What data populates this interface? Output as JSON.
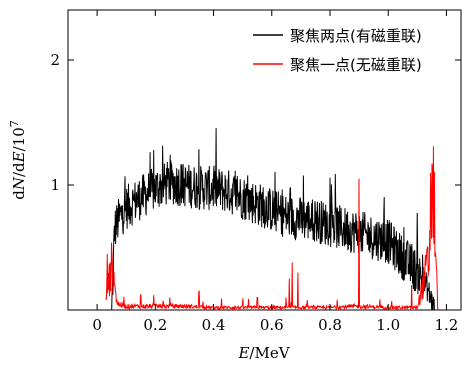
{
  "chart_data": {
    "type": "line",
    "title": "",
    "xlabel": "E/MeV",
    "xlabel_var": "E",
    "xlabel_unit": "/MeV",
    "ylabel": "dN/dE/10^7",
    "ylabel_parts": {
      "d1": "d",
      "N": "N",
      "slash1": "/d",
      "E": "E",
      "slash2": "/10",
      "exp": "7"
    },
    "xlim": [
      -0.1,
      1.25
    ],
    "ylim": [
      0,
      2.4
    ],
    "xticks": [
      0,
      0.2,
      0.4,
      0.6,
      0.8,
      1.0,
      1.2
    ],
    "xtick_labels": [
      "0",
      "0.2",
      "0.4",
      "0.6",
      "0.8",
      "1.0",
      "1.2"
    ],
    "yticks": [
      1,
      2
    ],
    "ytick_labels": [
      "1",
      "2"
    ],
    "grid": false,
    "legend_position": "top-right",
    "series": [
      {
        "name": "聚焦两点(有磁重联)",
        "color": "#000000",
        "x": [
          0.05,
          0.06,
          0.08,
          0.1,
          0.15,
          0.2,
          0.25,
          0.3,
          0.35,
          0.4,
          0.45,
          0.5,
          0.55,
          0.6,
          0.65,
          0.7,
          0.75,
          0.8,
          0.85,
          0.9,
          0.95,
          1.0,
          1.05,
          1.1,
          1.13,
          1.16
        ],
        "y": [
          0.0,
          0.65,
          0.75,
          0.82,
          0.9,
          0.97,
          1.02,
          1.0,
          0.98,
          0.97,
          0.95,
          0.9,
          0.85,
          0.8,
          0.75,
          0.73,
          0.72,
          0.68,
          0.65,
          0.62,
          0.58,
          0.55,
          0.42,
          0.3,
          0.2,
          0.0
        ],
        "noise": 0.18
      },
      {
        "name": "聚焦一点(无磁重联)",
        "color": "#ff0000",
        "x": [
          0.03,
          0.05,
          0.07,
          0.1,
          0.2,
          0.3,
          0.4,
          0.5,
          0.6,
          0.7,
          0.8,
          0.9,
          1.0,
          1.1,
          1.14,
          1.15,
          1.16,
          1.17
        ],
        "y": [
          0.1,
          0.35,
          0.05,
          0.03,
          0.03,
          0.03,
          0.02,
          0.02,
          0.02,
          0.02,
          0.02,
          0.03,
          0.02,
          0.02,
          0.4,
          1.1,
          0.7,
          0.0
        ],
        "spikes": [
          [
            0.035,
            0.45
          ],
          [
            0.045,
            0.38
          ],
          [
            0.06,
            0.2
          ],
          [
            0.15,
            0.12
          ],
          [
            0.25,
            0.1
          ],
          [
            0.35,
            0.15
          ],
          [
            0.55,
            0.1
          ],
          [
            0.66,
            0.25
          ],
          [
            0.67,
            0.38
          ],
          [
            0.69,
            0.3
          ],
          [
            0.9,
            1.05
          ],
          [
            1.08,
            0.2
          ]
        ]
      }
    ]
  }
}
